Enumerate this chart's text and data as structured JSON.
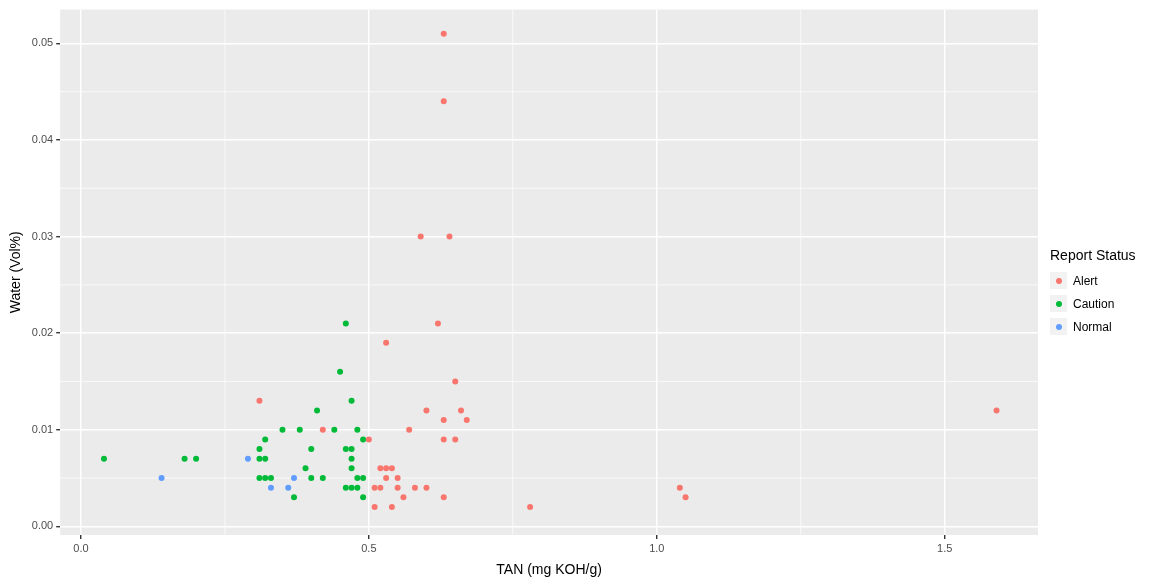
{
  "chart_data": {
    "type": "scatter",
    "xlabel": "TAN (mg KOH/g)",
    "ylabel": "Water (Vol%)",
    "legend_title": "Report Status",
    "legend": "right",
    "grid": true,
    "marker": "circle",
    "xlim": [
      -0.036,
      1.662
    ],
    "ylim": [
      -0.0009,
      0.0535
    ],
    "xticks": [
      {
        "value": 0,
        "label": "0.0"
      },
      {
        "value": 0.5,
        "label": "0.5"
      },
      {
        "value": 1,
        "label": "1.0"
      },
      {
        "value": 1.5,
        "label": "1.5"
      }
    ],
    "yticks": [
      {
        "value": 0,
        "label": "0.00"
      },
      {
        "value": 0.01,
        "label": "0.01"
      },
      {
        "value": 0.02,
        "label": "0.02"
      },
      {
        "value": 0.03,
        "label": "0.03"
      },
      {
        "value": 0.04,
        "label": "0.04"
      },
      {
        "value": 0.05,
        "label": "0.05"
      }
    ],
    "series": [
      {
        "name": "Alert",
        "color": "#f8766d",
        "x": [
          0.31,
          0.42,
          0.5,
          0.53,
          0.62,
          0.65,
          0.6,
          0.66,
          0.63,
          0.67,
          0.57,
          0.63,
          0.65,
          0.52,
          0.53,
          0.54,
          0.53,
          0.55,
          0.51,
          0.52,
          0.55,
          0.58,
          0.6,
          0.56,
          0.63,
          0.51,
          0.54,
          0.78,
          1.04,
          1.05,
          0.63,
          0.63,
          0.59,
          0.64,
          1.59
        ],
        "values": [
          0.013,
          0.01,
          0.009,
          0.019,
          0.021,
          0.015,
          0.012,
          0.012,
          0.011,
          0.011,
          0.01,
          0.009,
          0.009,
          0.006,
          0.006,
          0.006,
          0.005,
          0.005,
          0.004,
          0.004,
          0.004,
          0.004,
          0.004,
          0.003,
          0.003,
          0.002,
          0.002,
          0.002,
          0.004,
          0.003,
          0.051,
          0.044,
          0.03,
          0.03,
          0.012
        ]
      },
      {
        "name": "Caution",
        "color": "#00ba38",
        "x": [
          0.46,
          0.45,
          0.47,
          0.41,
          0.35,
          0.38,
          0.44,
          0.48,
          0.32,
          0.49,
          0.31,
          0.4,
          0.46,
          0.47,
          0.04,
          0.18,
          0.2,
          0.31,
          0.32,
          0.47,
          0.39,
          0.47,
          0.31,
          0.32,
          0.33,
          0.4,
          0.42,
          0.48,
          0.49,
          0.46,
          0.47,
          0.48,
          0.49,
          0.37
        ],
        "values": [
          0.021,
          0.016,
          0.013,
          0.012,
          0.01,
          0.01,
          0.01,
          0.01,
          0.009,
          0.009,
          0.008,
          0.008,
          0.008,
          0.008,
          0.007,
          0.007,
          0.007,
          0.007,
          0.007,
          0.007,
          0.006,
          0.006,
          0.005,
          0.005,
          0.005,
          0.005,
          0.005,
          0.005,
          0.005,
          0.004,
          0.004,
          0.004,
          0.003,
          0.003
        ]
      },
      {
        "name": "Normal",
        "color": "#619cff",
        "x": [
          0.29,
          0.14,
          0.37,
          0.33,
          0.36
        ],
        "values": [
          0.007,
          0.005,
          0.005,
          0.004,
          0.004
        ]
      }
    ]
  }
}
